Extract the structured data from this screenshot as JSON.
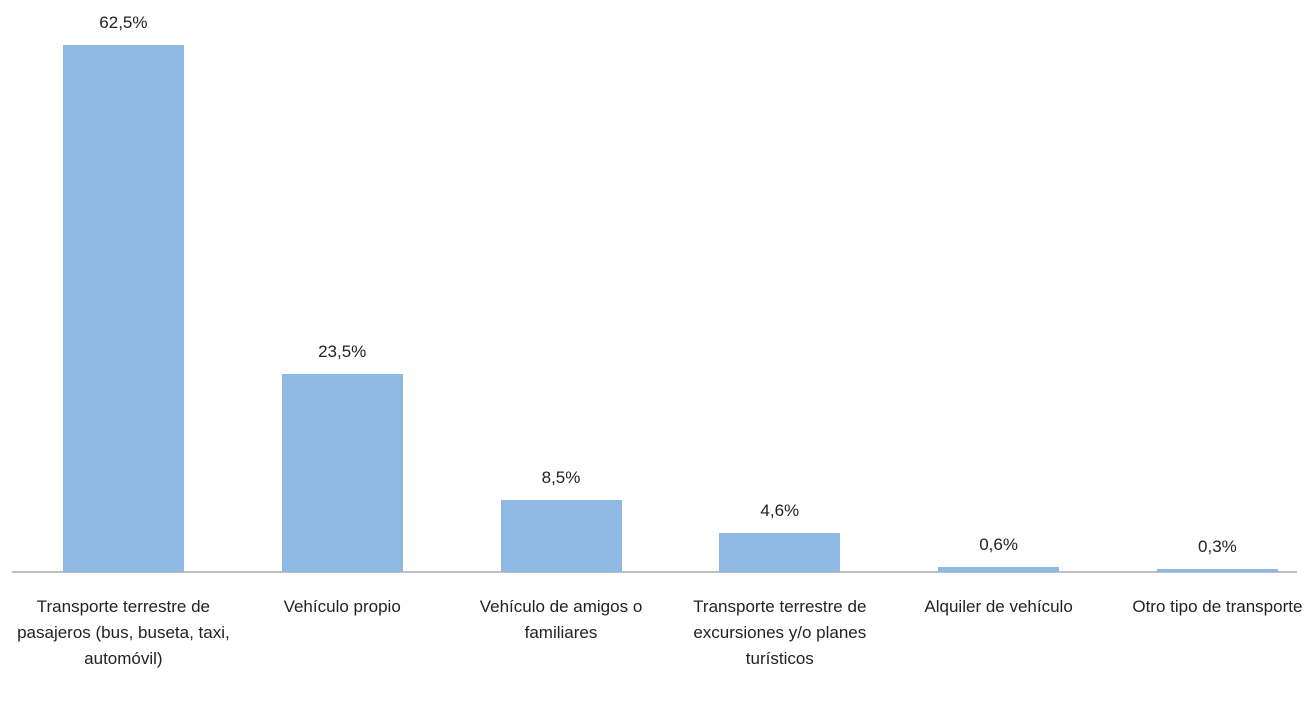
{
  "chart_data": {
    "type": "bar",
    "categories": [
      "Transporte terrestre de pasajeros (bus, buseta, taxi, automóvil)",
      "Vehículo propio",
      "Vehículo de amigos o familiares",
      "Transporte terrestre de excursiones y/o planes turísticos",
      "Alquiler de vehículo",
      "Otro tipo de transporte"
    ],
    "values": [
      62.5,
      23.5,
      8.5,
      4.6,
      0.6,
      0.3
    ],
    "value_labels": [
      "62,5%",
      "23,5%",
      "8,5%",
      "4,6%",
      "0,6%",
      "0,3%"
    ],
    "color": "#8db9e2"
  }
}
